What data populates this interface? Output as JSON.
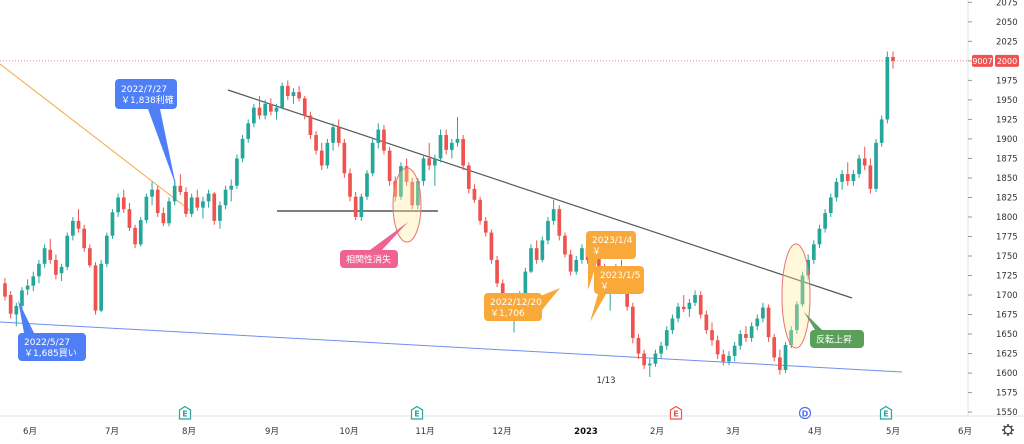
{
  "chart_data": {
    "type": "candlestick",
    "ylim": [
      1545,
      2078
    ],
    "y_ticks": [
      1550,
      1575,
      1600,
      1625,
      1650,
      1675,
      1700,
      1725,
      1750,
      1775,
      1800,
      1825,
      1850,
      1875,
      1900,
      1925,
      1950,
      1975,
      2000,
      2025,
      2050,
      2075
    ],
    "x_labels": [
      "6月",
      "7月",
      "8月",
      "9月",
      "10月",
      "11月",
      "12月",
      "2023",
      "2月",
      "3月",
      "4月",
      "5月",
      "6月"
    ],
    "price_label": {
      "ticker": "9007",
      "value": "2000"
    },
    "colors": {
      "up": "#26a69a",
      "down": "#ef5350",
      "trend": "#555555",
      "support": "#6f8ff0",
      "upper": "#f5a642",
      "neckline": "#333333"
    },
    "candles": [
      [
        1715,
        1722,
        1693,
        1698
      ],
      [
        1700,
        1705,
        1670,
        1676
      ],
      [
        1675,
        1690,
        1660,
        1686
      ],
      [
        1686,
        1710,
        1682,
        1706
      ],
      [
        1707,
        1720,
        1700,
        1712
      ],
      [
        1712,
        1730,
        1705,
        1724
      ],
      [
        1724,
        1745,
        1715,
        1740
      ],
      [
        1740,
        1765,
        1735,
        1760
      ],
      [
        1758,
        1772,
        1740,
        1745
      ],
      [
        1745,
        1752,
        1720,
        1726
      ],
      [
        1728,
        1740,
        1718,
        1736
      ],
      [
        1736,
        1780,
        1732,
        1776
      ],
      [
        1776,
        1800,
        1770,
        1795
      ],
      [
        1795,
        1810,
        1780,
        1785
      ],
      [
        1785,
        1790,
        1755,
        1760
      ],
      [
        1760,
        1765,
        1735,
        1738
      ],
      [
        1738,
        1742,
        1675,
        1680
      ],
      [
        1680,
        1745,
        1678,
        1740
      ],
      [
        1740,
        1780,
        1736,
        1776
      ],
      [
        1776,
        1810,
        1772,
        1806
      ],
      [
        1806,
        1830,
        1800,
        1825
      ],
      [
        1825,
        1835,
        1805,
        1810
      ],
      [
        1810,
        1818,
        1782,
        1786
      ],
      [
        1786,
        1790,
        1760,
        1765
      ],
      [
        1765,
        1800,
        1762,
        1796
      ],
      [
        1796,
        1830,
        1792,
        1826
      ],
      [
        1826,
        1845,
        1815,
        1835
      ],
      [
        1835,
        1840,
        1800,
        1805
      ],
      [
        1805,
        1812,
        1788,
        1792
      ],
      [
        1792,
        1825,
        1788,
        1820
      ],
      [
        1820,
        1848,
        1815,
        1840
      ],
      [
        1840,
        1855,
        1828,
        1832
      ],
      [
        1832,
        1838,
        1800,
        1804
      ],
      [
        1804,
        1830,
        1800,
        1825
      ],
      [
        1825,
        1835,
        1808,
        1812
      ],
      [
        1812,
        1826,
        1798,
        1820
      ],
      [
        1820,
        1835,
        1812,
        1830
      ],
      [
        1830,
        1832,
        1790,
        1795
      ],
      [
        1795,
        1820,
        1785,
        1815
      ],
      [
        1815,
        1840,
        1810,
        1835
      ],
      [
        1835,
        1848,
        1820,
        1840
      ],
      [
        1840,
        1880,
        1836,
        1875
      ],
      [
        1875,
        1905,
        1870,
        1900
      ],
      [
        1900,
        1925,
        1895,
        1920
      ],
      [
        1920,
        1945,
        1915,
        1940
      ],
      [
        1940,
        1955,
        1925,
        1930
      ],
      [
        1930,
        1950,
        1925,
        1945
      ],
      [
        1945,
        1952,
        1930,
        1935
      ],
      [
        1935,
        1945,
        1925,
        1940
      ],
      [
        1940,
        1972,
        1938,
        1968
      ],
      [
        1968,
        1975,
        1950,
        1955
      ],
      [
        1955,
        1965,
        1945,
        1960
      ],
      [
        1960,
        1968,
        1948,
        1952
      ],
      [
        1952,
        1955,
        1925,
        1930
      ],
      [
        1930,
        1935,
        1900,
        1905
      ],
      [
        1905,
        1910,
        1880,
        1885
      ],
      [
        1885,
        1895,
        1860,
        1866
      ],
      [
        1866,
        1900,
        1862,
        1895
      ],
      [
        1895,
        1920,
        1885,
        1915
      ],
      [
        1915,
        1925,
        1890,
        1895
      ],
      [
        1895,
        1900,
        1850,
        1856
      ],
      [
        1856,
        1862,
        1820,
        1826
      ],
      [
        1826,
        1832,
        1796,
        1800
      ],
      [
        1800,
        1830,
        1795,
        1826
      ],
      [
        1826,
        1860,
        1822,
        1856
      ],
      [
        1856,
        1900,
        1852,
        1895
      ],
      [
        1895,
        1920,
        1888,
        1912
      ],
      [
        1912,
        1918,
        1880,
        1885
      ],
      [
        1885,
        1890,
        1840,
        1846
      ],
      [
        1846,
        1852,
        1820,
        1826
      ],
      [
        1826,
        1870,
        1822,
        1865
      ],
      [
        1865,
        1875,
        1840,
        1845
      ],
      [
        1845,
        1850,
        1810,
        1815
      ],
      [
        1815,
        1850,
        1810,
        1846
      ],
      [
        1846,
        1880,
        1840,
        1875
      ],
      [
        1875,
        1895,
        1860,
        1866
      ],
      [
        1866,
        1880,
        1840,
        1875
      ],
      [
        1875,
        1912,
        1870,
        1905
      ],
      [
        1905,
        1912,
        1880,
        1886
      ],
      [
        1886,
        1900,
        1875,
        1895
      ],
      [
        1895,
        1928,
        1890,
        1900
      ],
      [
        1900,
        1905,
        1860,
        1866
      ],
      [
        1866,
        1870,
        1830,
        1836
      ],
      [
        1836,
        1842,
        1818,
        1822
      ],
      [
        1822,
        1826,
        1790,
        1795
      ],
      [
        1795,
        1800,
        1775,
        1780
      ],
      [
        1780,
        1784,
        1740,
        1745
      ],
      [
        1745,
        1750,
        1710,
        1715
      ],
      [
        1715,
        1720,
        1690,
        1696
      ],
      [
        1696,
        1700,
        1670,
        1676
      ],
      [
        1676,
        1700,
        1652,
        1690
      ],
      [
        1690,
        1705,
        1685,
        1700
      ],
      [
        1700,
        1735,
        1698,
        1730
      ],
      [
        1730,
        1765,
        1728,
        1760
      ],
      [
        1760,
        1770,
        1740,
        1745
      ],
      [
        1745,
        1775,
        1742,
        1770
      ],
      [
        1770,
        1800,
        1765,
        1795
      ],
      [
        1795,
        1822,
        1790,
        1810
      ],
      [
        1810,
        1815,
        1770,
        1776
      ],
      [
        1776,
        1780,
        1748,
        1752
      ],
      [
        1752,
        1758,
        1725,
        1730
      ],
      [
        1730,
        1750,
        1726,
        1745
      ],
      [
        1745,
        1765,
        1740,
        1760
      ],
      [
        1760,
        1770,
        1740,
        1745
      ],
      [
        1745,
        1760,
        1735,
        1755
      ],
      [
        1755,
        1760,
        1725,
        1732
      ],
      [
        1732,
        1740,
        1700,
        1706
      ],
      [
        1706,
        1720,
        1680,
        1715
      ],
      [
        1715,
        1740,
        1710,
        1735
      ],
      [
        1735,
        1745,
        1705,
        1710
      ],
      [
        1710,
        1716,
        1680,
        1685
      ],
      [
        1685,
        1690,
        1638,
        1645
      ],
      [
        1645,
        1650,
        1618,
        1625
      ],
      [
        1625,
        1630,
        1605,
        1610
      ],
      [
        1610,
        1618,
        1595,
        1612
      ],
      [
        1612,
        1630,
        1608,
        1625
      ],
      [
        1625,
        1640,
        1618,
        1635
      ],
      [
        1635,
        1660,
        1630,
        1655
      ],
      [
        1655,
        1675,
        1650,
        1670
      ],
      [
        1670,
        1690,
        1665,
        1685
      ],
      [
        1685,
        1700,
        1678,
        1682
      ],
      [
        1682,
        1695,
        1672,
        1690
      ],
      [
        1690,
        1706,
        1686,
        1700
      ],
      [
        1700,
        1705,
        1670,
        1675
      ],
      [
        1675,
        1680,
        1650,
        1655
      ],
      [
        1655,
        1665,
        1635,
        1642
      ],
      [
        1642,
        1648,
        1618,
        1624
      ],
      [
        1624,
        1630,
        1610,
        1615
      ],
      [
        1615,
        1628,
        1610,
        1622
      ],
      [
        1622,
        1640,
        1615,
        1635
      ],
      [
        1635,
        1655,
        1630,
        1650
      ],
      [
        1650,
        1660,
        1640,
        1645
      ],
      [
        1645,
        1665,
        1640,
        1660
      ],
      [
        1660,
        1675,
        1655,
        1670
      ],
      [
        1670,
        1690,
        1665,
        1684
      ],
      [
        1684,
        1688,
        1640,
        1646
      ],
      [
        1646,
        1650,
        1615,
        1620
      ],
      [
        1620,
        1630,
        1598,
        1604
      ],
      [
        1604,
        1640,
        1600,
        1636
      ],
      [
        1636,
        1660,
        1632,
        1655
      ],
      [
        1655,
        1692,
        1650,
        1688
      ],
      [
        1688,
        1730,
        1685,
        1725
      ],
      [
        1725,
        1752,
        1720,
        1745
      ],
      [
        1745,
        1770,
        1740,
        1765
      ],
      [
        1765,
        1790,
        1760,
        1785
      ],
      [
        1785,
        1810,
        1780,
        1805
      ],
      [
        1805,
        1830,
        1800,
        1825
      ],
      [
        1825,
        1850,
        1820,
        1845
      ],
      [
        1845,
        1860,
        1835,
        1855
      ],
      [
        1855,
        1870,
        1840,
        1846
      ],
      [
        1846,
        1860,
        1840,
        1855
      ],
      [
        1855,
        1880,
        1850,
        1875
      ],
      [
        1875,
        1890,
        1860,
        1866
      ],
      [
        1866,
        1875,
        1830,
        1836
      ],
      [
        1836,
        1900,
        1832,
        1895
      ],
      [
        1895,
        1930,
        1890,
        1925
      ],
      [
        1925,
        2012,
        1920,
        2005
      ],
      [
        2005,
        2012,
        1990,
        2000
      ]
    ],
    "annotations": [
      {
        "id": "buy",
        "text_lines": [
          "2022/5/27",
          "￥1,685買い"
        ],
        "color": "#4f7ff7"
      },
      {
        "id": "profit",
        "text_lines": [
          "2022/7/27",
          "￥1,838利確"
        ],
        "color": "#4f7ff7"
      },
      {
        "id": "corr",
        "text_lines": [
          "相関性消失"
        ],
        "color": "#f06292"
      },
      {
        "id": "dec20",
        "text_lines": [
          "2022/12/20",
          "￥1,706"
        ],
        "color": "#f9a83a"
      },
      {
        "id": "jan4",
        "text_lines": [
          "2023/1/4",
          "￥"
        ],
        "color": "#f9a83a"
      },
      {
        "id": "jan5",
        "text_lines": [
          "2023/1/5",
          "￥"
        ],
        "color": "#f9a83a"
      },
      {
        "id": "reversal",
        "text_lines": [
          "反転上昇"
        ],
        "color": "#5aa05a"
      }
    ],
    "low_label": "1/13",
    "event_markers": [
      {
        "label": "E",
        "color": "#26a69a"
      },
      {
        "label": "E",
        "color": "#26a69a"
      },
      {
        "label": "E",
        "color": "#ef5350"
      },
      {
        "label": "D",
        "color": "#4f6ff0"
      },
      {
        "label": "E",
        "color": "#26a69a"
      }
    ],
    "settings_icon": "gear-icon"
  }
}
